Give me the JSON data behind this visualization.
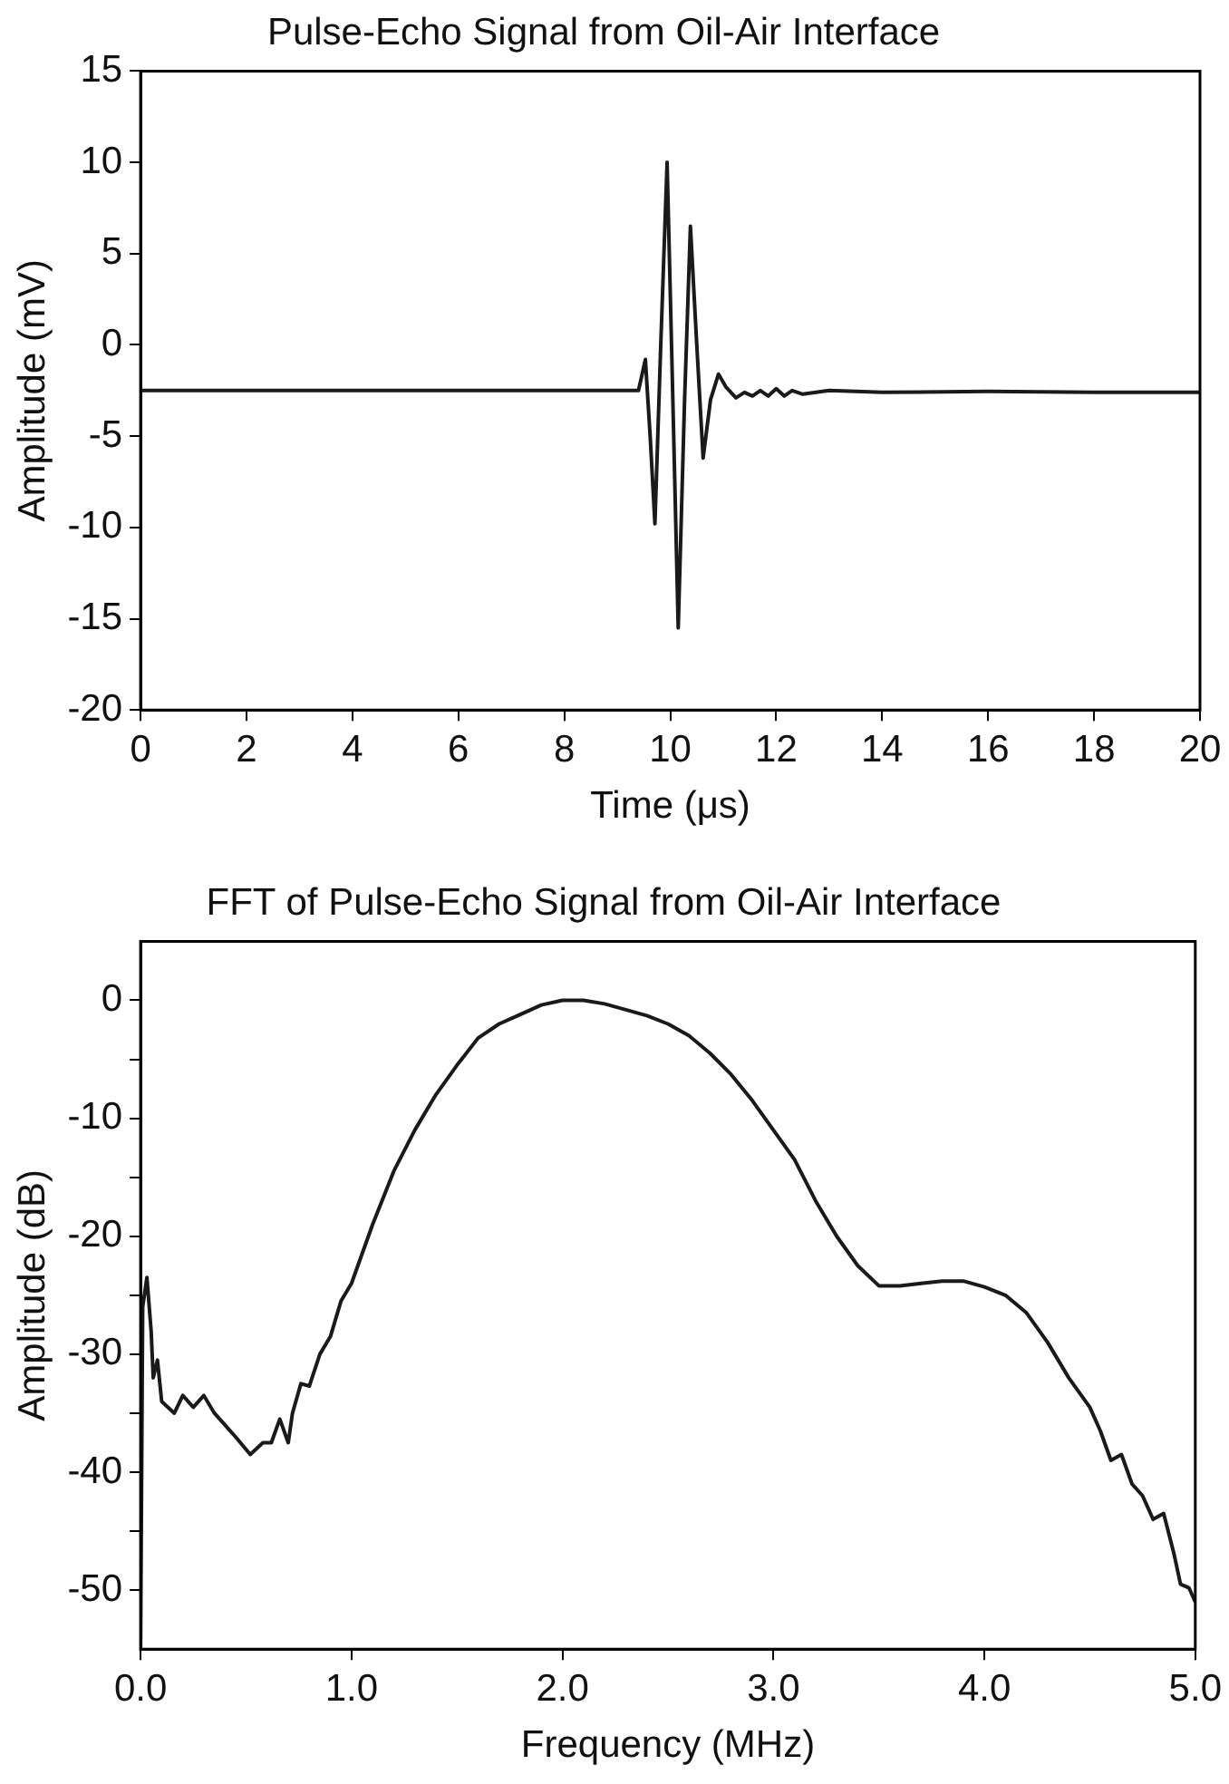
{
  "chart_data": [
    {
      "type": "line",
      "title": "Pulse-Echo Signal from Oil-Air Interface",
      "xlabel": "Time (μs)",
      "ylabel": "Amplitude (mV)",
      "x": [
        0,
        9.4,
        9.53,
        9.62,
        9.71,
        9.82,
        9.94,
        10.04,
        10.15,
        10.27,
        10.38,
        10.5,
        10.62,
        10.76,
        10.91,
        11.05,
        11.24,
        11.4,
        11.55,
        11.7,
        11.85,
        12.0,
        12.15,
        12.3,
        12.5,
        13,
        14,
        16,
        18,
        20
      ],
      "values": [
        -2.5,
        -2.5,
        -0.8,
        -5,
        -9.8,
        0,
        10,
        -2,
        -15.5,
        -3,
        6.5,
        0,
        -6.2,
        -3,
        -1.6,
        -2.3,
        -2.9,
        -2.6,
        -2.8,
        -2.5,
        -2.8,
        -2.4,
        -2.8,
        -2.5,
        -2.7,
        -2.5,
        -2.6,
        -2.55,
        -2.6,
        -2.6
      ],
      "color": "#1a1a1a",
      "xlim": [
        0,
        20
      ],
      "ylim": [
        -20,
        15
      ],
      "xticks": [
        0,
        2,
        4,
        6,
        8,
        10,
        12,
        14,
        16,
        18,
        20
      ],
      "yticks": [
        -20,
        -15,
        -10,
        -5,
        0,
        5,
        10,
        15
      ],
      "grid": false,
      "legend": false
    },
    {
      "type": "line",
      "title": "FFT of Pulse-Echo Signal from Oil-Air Interface",
      "xlabel": "Frequency (MHz)",
      "ylabel": "Amplitude (dB)",
      "x": [
        0,
        0.01,
        0.03,
        0.05,
        0.06,
        0.08,
        0.1,
        0.13,
        0.16,
        0.2,
        0.25,
        0.3,
        0.35,
        0.4,
        0.45,
        0.52,
        0.58,
        0.62,
        0.66,
        0.7,
        0.72,
        0.76,
        0.8,
        0.85,
        0.9,
        0.95,
        1.0,
        1.1,
        1.2,
        1.3,
        1.4,
        1.5,
        1.6,
        1.7,
        1.8,
        1.9,
        2.0,
        2.1,
        2.2,
        2.3,
        2.4,
        2.5,
        2.6,
        2.7,
        2.8,
        2.9,
        3.0,
        3.1,
        3.2,
        3.3,
        3.4,
        3.5,
        3.6,
        3.7,
        3.8,
        3.9,
        4.0,
        4.1,
        4.2,
        4.3,
        4.4,
        4.5,
        4.55,
        4.6,
        4.65,
        4.7,
        4.75,
        4.8,
        4.85,
        4.9,
        4.93,
        4.97,
        5.0
      ],
      "values": [
        -55,
        -26,
        -23.5,
        -28,
        -32,
        -30.5,
        -34,
        -34.5,
        -35,
        -33.5,
        -34.5,
        -33.5,
        -35,
        -36,
        -37,
        -38.5,
        -37.5,
        -37.5,
        -35.5,
        -37.5,
        -35,
        -32.5,
        -32.7,
        -30,
        -28.5,
        -25.5,
        -24,
        -19,
        -14.5,
        -11,
        -8,
        -5.5,
        -3.2,
        -2,
        -1.2,
        -0.4,
        0,
        0,
        -0.3,
        -0.8,
        -1.3,
        -2,
        -3,
        -4.5,
        -6.3,
        -8.5,
        -11,
        -13.5,
        -17,
        -20,
        -22.5,
        -24.2,
        -24.2,
        -24,
        -23.8,
        -23.8,
        -24.3,
        -25,
        -26.5,
        -29,
        -32,
        -34.5,
        -36.5,
        -39,
        -38.5,
        -41,
        -42,
        -44,
        -43.5,
        -47,
        -49.5,
        -49.8,
        -51
      ],
      "color": "#1a1a1a",
      "xlim": [
        0,
        5
      ],
      "ylim": [
        -55,
        5
      ],
      "xticks": [
        {
          "value": 0,
          "label": "0.0"
        },
        {
          "value": 1,
          "label": "1.0"
        },
        {
          "value": 2,
          "label": "2.0"
        },
        {
          "value": 3,
          "label": "3.0"
        },
        {
          "value": 4,
          "label": "4.0"
        },
        {
          "value": 5,
          "label": "5.0"
        }
      ],
      "yticks": [
        -50,
        {
          "value": -45,
          "label": null
        },
        -40,
        {
          "value": -35,
          "label": null
        },
        -30,
        {
          "value": -25,
          "label": null
        },
        -20,
        {
          "value": -15,
          "label": null
        },
        -10,
        {
          "value": -5,
          "label": null
        },
        0
      ],
      "grid": false,
      "legend": false
    }
  ]
}
